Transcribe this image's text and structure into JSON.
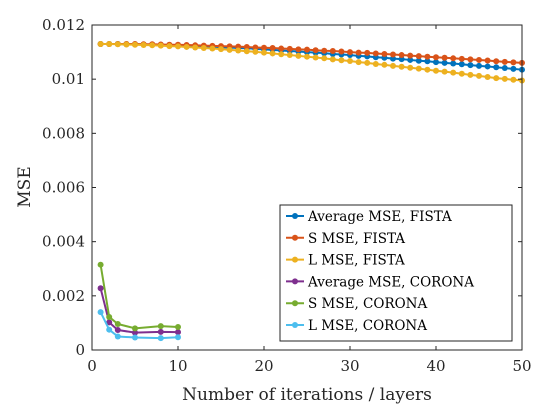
{
  "chart_data": {
    "type": "line",
    "xlabel": "Number of iterations / layers",
    "ylabel": "MSE",
    "xlim": [
      0,
      50
    ],
    "ylim": [
      0,
      0.012
    ],
    "xticks": [
      0,
      10,
      20,
      30,
      40,
      50
    ],
    "xtick_labels": [
      "0",
      "10",
      "20",
      "30",
      "40",
      "50"
    ],
    "yticks": [
      0,
      0.002,
      0.004,
      0.006,
      0.008,
      0.01,
      0.012
    ],
    "ytick_labels": [
      "0",
      "0.002",
      "0.004",
      "0.006",
      "0.008",
      "0.01",
      "0.012"
    ],
    "grid": false,
    "legend_position": "bottom-right",
    "series": [
      {
        "name": "Average MSE, FISTA",
        "color": "#0072BD",
        "x_start": 1,
        "x_end": 50,
        "x_step": 1,
        "values": [
          0.0113,
          0.0113,
          0.0113,
          0.01129,
          0.01129,
          0.01128,
          0.01127,
          0.01126,
          0.01126,
          0.01125,
          0.01124,
          0.01122,
          0.01121,
          0.0112,
          0.01118,
          0.01117,
          0.01115,
          0.01114,
          0.01112,
          0.0111,
          0.01108,
          0.01106,
          0.01104,
          0.01102,
          0.011,
          0.01098,
          0.01096,
          0.01093,
          0.01091,
          0.01089,
          0.01086,
          0.01084,
          0.01081,
          0.01079,
          0.01076,
          0.01074,
          0.01071,
          0.01068,
          0.01066,
          0.01063,
          0.0106,
          0.01058,
          0.01055,
          0.01052,
          0.01049,
          0.01047,
          0.01044,
          0.01041,
          0.01038,
          0.01035
        ]
      },
      {
        "name": "S MSE, FISTA",
        "color": "#D95319",
        "x_start": 1,
        "x_end": 50,
        "x_step": 1,
        "values": [
          0.0113,
          0.0113,
          0.0113,
          0.0113,
          0.0113,
          0.01129,
          0.01129,
          0.01128,
          0.01127,
          0.01127,
          0.01126,
          0.01125,
          0.01124,
          0.01123,
          0.01122,
          0.01121,
          0.0112,
          0.01119,
          0.01117,
          0.01116,
          0.01115,
          0.01113,
          0.01112,
          0.0111,
          0.01109,
          0.01107,
          0.01105,
          0.01104,
          0.01102,
          0.011,
          0.01098,
          0.01097,
          0.01095,
          0.01093,
          0.01091,
          0.01089,
          0.01087,
          0.01085,
          0.01083,
          0.01081,
          0.01079,
          0.01077,
          0.01075,
          0.01073,
          0.01071,
          0.01069,
          0.01066,
          0.01064,
          0.01062,
          0.0106
        ]
      },
      {
        "name": "L MSE, FISTA",
        "color": "#EDB120",
        "x_start": 1,
        "x_end": 50,
        "x_step": 1,
        "values": [
          0.0113,
          0.0113,
          0.01129,
          0.01128,
          0.01127,
          0.01126,
          0.01125,
          0.01124,
          0.01122,
          0.01121,
          0.01119,
          0.01117,
          0.01115,
          0.01113,
          0.01111,
          0.01108,
          0.01106,
          0.01103,
          0.01101,
          0.01098,
          0.01095,
          0.01092,
          0.01089,
          0.01086,
          0.01083,
          0.0108,
          0.01077,
          0.01073,
          0.0107,
          0.01067,
          0.01063,
          0.0106,
          0.01056,
          0.01053,
          0.01049,
          0.01046,
          0.01042,
          0.01039,
          0.01035,
          0.01031,
          0.01028,
          0.01024,
          0.0102,
          0.01016,
          0.01012,
          0.01008,
          0.01004,
          0.01001,
          0.00998,
          0.00995
        ]
      },
      {
        "name": "Average MSE, CORONA",
        "color": "#7E2F8E",
        "x": [
          1,
          2,
          3,
          5,
          8,
          10
        ],
        "values": [
          0.00228,
          0.00102,
          0.00074,
          0.00064,
          0.00067,
          0.00066
        ]
      },
      {
        "name": "S MSE, CORONA",
        "color": "#77AC30",
        "x": [
          1,
          2,
          3,
          5,
          8,
          10
        ],
        "values": [
          0.00315,
          0.00122,
          0.00096,
          0.0008,
          0.00088,
          0.00085
        ]
      },
      {
        "name": "L MSE, CORONA",
        "color": "#4DBEEE",
        "x": [
          1,
          2,
          3,
          5,
          8,
          10
        ],
        "values": [
          0.0014,
          0.00075,
          0.0005,
          0.00046,
          0.00044,
          0.00047
        ]
      }
    ]
  }
}
